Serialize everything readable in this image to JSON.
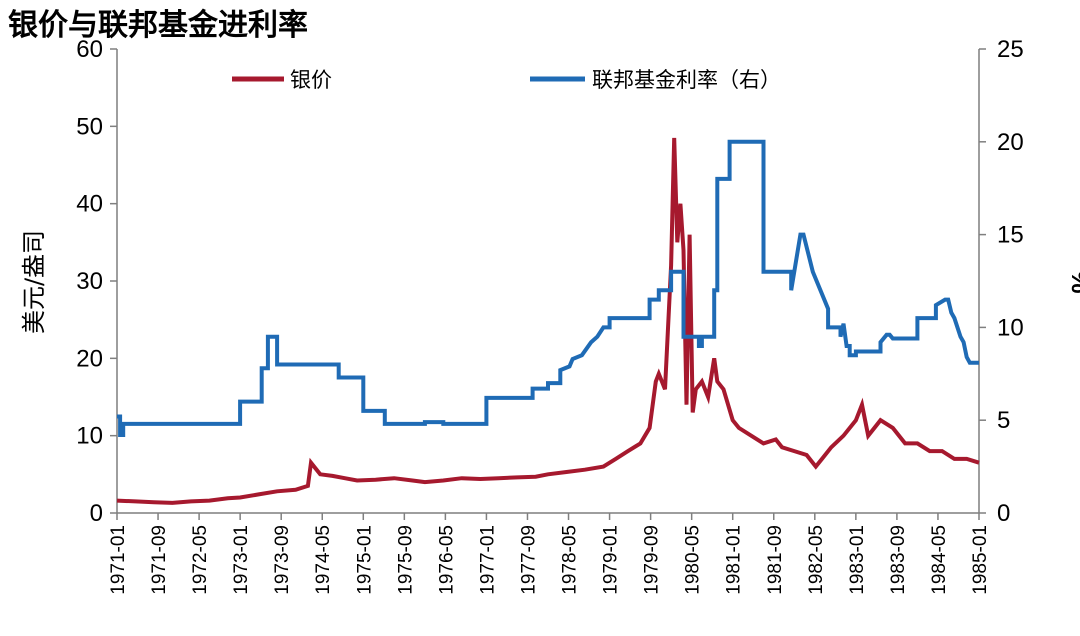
{
  "chart_data": {
    "type": "line",
    "title": "银价与联邦基金进利率",
    "ylabel_left": "美元/盎司",
    "ylabel_right": "%",
    "ylim_left": [
      0,
      60
    ],
    "ylim_right": [
      0,
      25
    ],
    "yticks_left": [
      "0",
      "10",
      "20",
      "30",
      "40",
      "50",
      "60"
    ],
    "yticks_right": [
      "0",
      "5",
      "10",
      "15",
      "20",
      "25"
    ],
    "x_range": [
      1971.0,
      1985.0
    ],
    "xticks": [
      "1971-01",
      "1971-09",
      "1972-05",
      "1973-01",
      "1973-09",
      "1974-05",
      "1975-01",
      "1975-09",
      "1976-05",
      "1977-01",
      "1977-09",
      "1978-05",
      "1979-01",
      "1979-09",
      "1980-05",
      "1981-01",
      "1981-09",
      "1982-05",
      "1983-01",
      "1983-09",
      "1984-05",
      "1985-01"
    ],
    "series": [
      {
        "name": "银价",
        "axis": "left",
        "color": "#A6192E",
        "x": [
          1971.0,
          1971.3,
          1971.6,
          1971.9,
          1972.2,
          1972.5,
          1972.8,
          1973.0,
          1973.3,
          1973.6,
          1973.9,
          1974.1,
          1974.15,
          1974.3,
          1974.5,
          1974.7,
          1974.9,
          1975.2,
          1975.5,
          1975.8,
          1976.0,
          1976.3,
          1976.6,
          1976.9,
          1977.2,
          1977.5,
          1977.8,
          1978.0,
          1978.3,
          1978.6,
          1978.9,
          1979.1,
          1979.3,
          1979.5,
          1979.65,
          1979.75,
          1979.8,
          1979.9,
          1980.0,
          1980.05,
          1980.1,
          1980.15,
          1980.2,
          1980.25,
          1980.3,
          1980.35,
          1980.4,
          1980.5,
          1980.6,
          1980.7,
          1980.75,
          1980.85,
          1981.0,
          1981.1,
          1981.3,
          1981.5,
          1981.7,
          1981.8,
          1982.0,
          1982.2,
          1982.35,
          1982.45,
          1982.6,
          1982.8,
          1983.0,
          1983.1,
          1983.2,
          1983.4,
          1983.6,
          1983.8,
          1984.0,
          1984.2,
          1984.4,
          1984.6,
          1984.8,
          1985.0
        ],
        "y": [
          1.6,
          1.5,
          1.4,
          1.3,
          1.5,
          1.6,
          1.9,
          2.0,
          2.4,
          2.8,
          3.0,
          3.5,
          6.5,
          5.0,
          4.8,
          4.5,
          4.2,
          4.3,
          4.5,
          4.2,
          4.0,
          4.2,
          4.5,
          4.4,
          4.5,
          4.6,
          4.7,
          5.0,
          5.3,
          5.6,
          6.0,
          7.0,
          8.0,
          9.0,
          11.0,
          17.0,
          18.0,
          16.0,
          32.0,
          48.5,
          35.0,
          40.0,
          34.0,
          14.0,
          36.0,
          13.0,
          16.0,
          17.0,
          15.0,
          20.0,
          17.0,
          16.0,
          12.0,
          11.0,
          10.0,
          9.0,
          9.5,
          8.5,
          8.0,
          7.5,
          6.0,
          7.0,
          8.5,
          10.0,
          12.0,
          14.0,
          10.0,
          12.0,
          11.0,
          9.0,
          9.0,
          8.0,
          8.0,
          7.0,
          7.0,
          6.5
        ]
      },
      {
        "name": "联邦基金利率（右）",
        "axis": "right",
        "color": "#1F6BB5",
        "x": [
          1971.0,
          1971.05,
          1971.05,
          1971.1,
          1971.1,
          1973.0,
          1973.0,
          1973.35,
          1973.35,
          1973.45,
          1973.45,
          1973.6,
          1973.6,
          1974.6,
          1974.6,
          1975.0,
          1975.0,
          1975.35,
          1975.35,
          1976.0,
          1976.0,
          1976.3,
          1976.3,
          1977.0,
          1977.0,
          1977.75,
          1977.75,
          1978.0,
          1978.0,
          1978.2,
          1978.2,
          1978.35,
          1978.4,
          1978.55,
          1978.7,
          1978.8,
          1978.9,
          1979.0,
          1979.0,
          1979.65,
          1979.65,
          1979.8,
          1979.8,
          1980.0,
          1980.0,
          1980.2,
          1980.2,
          1980.45,
          1980.45,
          1980.5,
          1980.5,
          1980.7,
          1980.7,
          1980.75,
          1980.75,
          1980.95,
          1980.95,
          1981.5,
          1981.5,
          1981.95,
          1981.95,
          1982.1,
          1982.15,
          1982.3,
          1982.3,
          1982.55,
          1982.55,
          1982.75,
          1982.75,
          1982.8,
          1982.85,
          1982.9,
          1982.9,
          1983.0,
          1983.0,
          1983.4,
          1983.4,
          1983.5,
          1983.55,
          1983.6,
          1983.6,
          1984.0,
          1984.0,
          1984.3,
          1984.3,
          1984.45,
          1984.5,
          1984.55,
          1984.6,
          1984.7,
          1984.75,
          1984.8,
          1984.85,
          1984.9,
          1984.95,
          1985.0
        ],
        "y": [
          5.2,
          5.2,
          4.2,
          4.2,
          4.8,
          4.8,
          6.0,
          6.0,
          7.8,
          7.8,
          9.5,
          9.5,
          8.0,
          8.0,
          7.3,
          7.3,
          5.5,
          5.5,
          4.8,
          4.8,
          4.9,
          4.9,
          4.8,
          4.8,
          6.2,
          6.2,
          6.7,
          6.7,
          7.0,
          7.0,
          7.7,
          7.9,
          8.3,
          8.5,
          9.2,
          9.5,
          10.0,
          10.0,
          10.5,
          10.5,
          11.5,
          11.5,
          12.0,
          12.0,
          13.0,
          13.0,
          9.5,
          9.5,
          9.0,
          9.0,
          9.5,
          9.5,
          12.0,
          12.0,
          18.0,
          18.0,
          20.0,
          20.0,
          13.0,
          13.0,
          12.0,
          15.0,
          15.0,
          13.0,
          13.0,
          11.0,
          10.0,
          10.0,
          9.5,
          10.2,
          9.0,
          9.0,
          8.5,
          8.5,
          8.7,
          8.7,
          9.2,
          9.6,
          9.6,
          9.4,
          9.4,
          9.4,
          10.5,
          10.5,
          11.2,
          11.5,
          11.5,
          10.8,
          10.5,
          9.5,
          9.2,
          8.4,
          8.1,
          8.1,
          8.1,
          8.1
        ]
      }
    ],
    "legend": [
      "银价",
      "联邦基金利率（右）"
    ],
    "legend_position": "top"
  }
}
